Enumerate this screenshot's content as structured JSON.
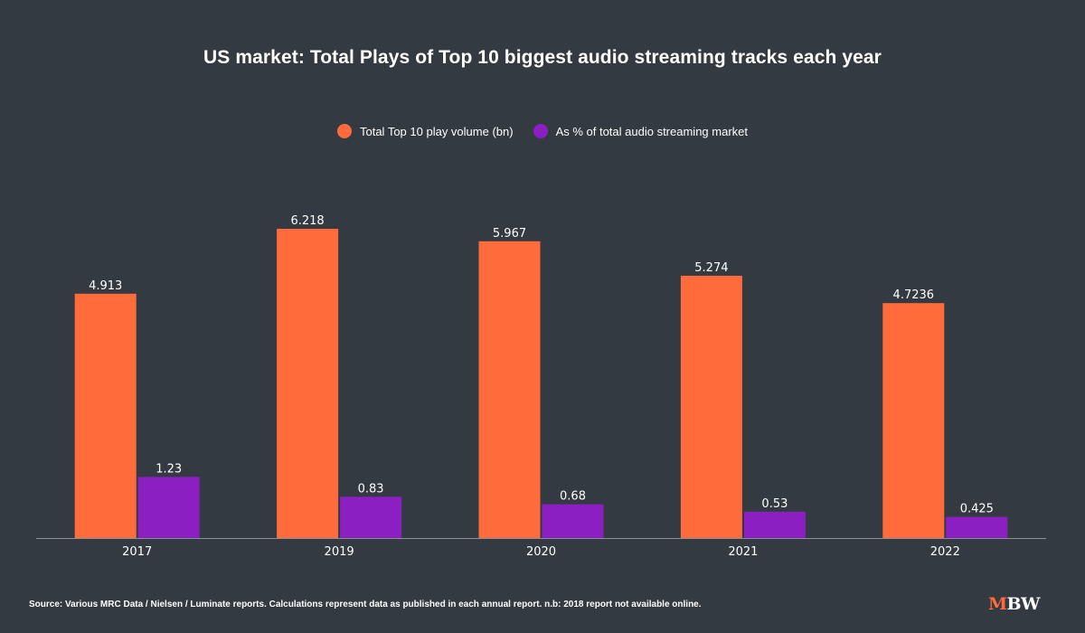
{
  "chart_data": {
    "type": "bar",
    "title": "US market: Total Plays of Top 10 biggest audio streaming tracks each year",
    "categories": [
      "2017",
      "2019",
      "2020",
      "2021",
      "2022"
    ],
    "series": [
      {
        "name": "Total Top 10 play volume (bn)",
        "color": "#ff6b3b",
        "values": [
          4.913,
          6.218,
          5.967,
          5.274,
          4.7236
        ],
        "labels": [
          "4.913",
          "6.218",
          "5.967",
          "5.274",
          "4.7236"
        ]
      },
      {
        "name": "As % of total audio streaming market",
        "color": "#8c1fc1",
        "values": [
          1.23,
          0.83,
          0.68,
          0.53,
          0.425
        ],
        "labels": [
          "1.23",
          "0.83",
          "0.68",
          "0.53",
          "0.425"
        ]
      }
    ],
    "xlabel": "",
    "ylabel": "",
    "ylim": [
      0,
      7.5
    ],
    "grid": false,
    "legend": "top-center"
  },
  "footer": {
    "source": "Source: Various MRC Data / Nielsen / Luminate reports. Calculations represent data as published in each annual report. n.b: 2018 report not available online."
  },
  "logo": {
    "m": "M",
    "bw": "BW",
    "m_color": "#ff6b3b",
    "bw_color": "#ffffff"
  }
}
